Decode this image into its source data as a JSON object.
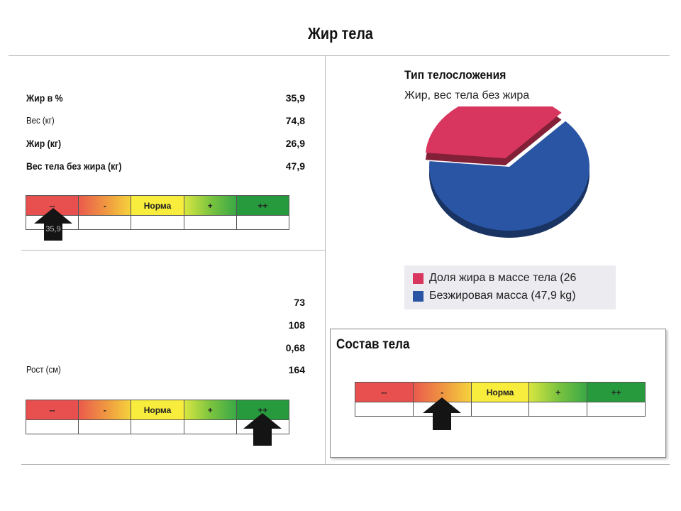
{
  "page": {
    "title": "Жир тела"
  },
  "fat_section": {
    "rows": [
      {
        "label": "Жир в %",
        "value": "35,9"
      },
      {
        "label": "Вес (кг)",
        "value": "74,8"
      },
      {
        "label": "Жир (кг)",
        "value": "26,9"
      },
      {
        "label": "Вес тела без жира (кг)",
        "value": "47,9"
      }
    ],
    "scale": {
      "segments": [
        "--",
        "-",
        "Норма",
        "+",
        "++"
      ],
      "marker_segment": 1,
      "marker_label": "35,9"
    }
  },
  "body_section": {
    "rows": [
      {
        "label": "",
        "value": "73"
      },
      {
        "label": "",
        "value": "108"
      },
      {
        "label": "",
        "value": "0,68"
      },
      {
        "label": "Рост (см)",
        "value": "164"
      }
    ],
    "scale": {
      "segments": [
        "--",
        "-",
        "Норма",
        "+",
        "++"
      ],
      "marker_segment": 5
    }
  },
  "physique": {
    "title": "Тип телосложения",
    "subtitle": "Жир, вес тела без жира",
    "legend": [
      {
        "label": "Доля жира в массе тела  (26",
        "color": "#d8365e"
      },
      {
        "label": "Безжировая масса (47,9 kg)",
        "color": "#2a55a4"
      }
    ]
  },
  "chart_data": {
    "type": "pie",
    "title": "Тип телосложения",
    "subtitle": "Жир, вес тела без жира",
    "slices": [
      {
        "name": "Доля жира в массе тела",
        "value": 26.9,
        "color": "#d8365e"
      },
      {
        "name": "Безжировая масса",
        "value": 47.9,
        "color": "#2a55a4"
      }
    ],
    "legend_position": "bottom"
  },
  "composition_panel": {
    "title": "Состав тела",
    "scale": {
      "segments": [
        "--",
        "-",
        "Норма",
        "+",
        "++"
      ],
      "marker_segment": 2
    }
  }
}
